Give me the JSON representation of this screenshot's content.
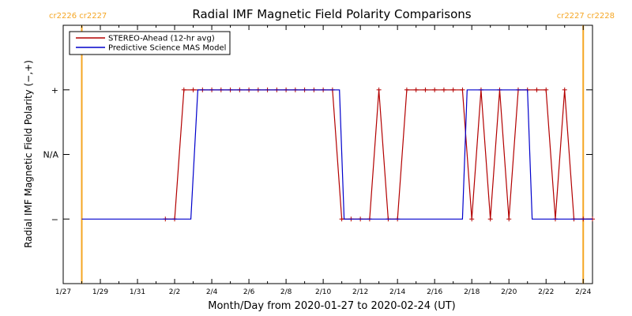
{
  "chart_data": {
    "type": "line",
    "title": "Radial IMF Magnetic Field Polarity Comparisons",
    "xlabel": "Month/Day from 2020-01-27 to 2020-02-24 (UT)",
    "ylabel": "Radial IMF Magnetic Field Polarity (−,+)",
    "x_unit": "days",
    "xlim": [
      "2020-01-27 00:00",
      "2020-02-24 12:00"
    ],
    "ylim": [
      -2,
      2
    ],
    "y_ticks": [
      {
        "value": 1,
        "label": "+"
      },
      {
        "value": 0,
        "label": "N/A"
      },
      {
        "value": -1,
        "label": "−"
      }
    ],
    "x_ticks": [
      {
        "value": "2020-01-27",
        "label": "1/27"
      },
      {
        "value": "2020-01-29",
        "label": "1/29"
      },
      {
        "value": "2020-01-31",
        "label": "1/31"
      },
      {
        "value": "2020-02-02",
        "label": "2/2"
      },
      {
        "value": "2020-02-04",
        "label": "2/4"
      },
      {
        "value": "2020-02-06",
        "label": "2/6"
      },
      {
        "value": "2020-02-08",
        "label": "2/8"
      },
      {
        "value": "2020-02-10",
        "label": "2/10"
      },
      {
        "value": "2020-02-12",
        "label": "2/12"
      },
      {
        "value": "2020-02-14",
        "label": "2/14"
      },
      {
        "value": "2020-02-16",
        "label": "2/16"
      },
      {
        "value": "2020-02-18",
        "label": "2/18"
      },
      {
        "value": "2020-02-20",
        "label": "2/20"
      },
      {
        "value": "2020-02-22",
        "label": "2/22"
      },
      {
        "value": "2020-02-24",
        "label": "2/24"
      }
    ],
    "legend": {
      "placement": "top-left",
      "entries": [
        {
          "label": "STEREO-Ahead (12-hr avg)",
          "color": "#b30000"
        },
        {
          "label": "Predictive Science MAS Model",
          "color": "#0000cc"
        }
      ]
    },
    "carrington_markers": [
      {
        "x": "2020-01-28 00:00",
        "left_label": "cr2226",
        "right_label": "cr2227",
        "side": "left"
      },
      {
        "x": "2020-02-24 00:00",
        "left_label": "cr2227",
        "right_label": "cr2228",
        "side": "right"
      }
    ],
    "series": [
      {
        "name": "STEREO-Ahead (12-hr avg)",
        "color": "#b30000",
        "markers": true,
        "points": [
          [
            "2020-02-01 12:00",
            -1
          ],
          [
            "2020-02-02 00:00",
            -1
          ],
          [
            "2020-02-02 12:00",
            1
          ],
          [
            "2020-02-03 00:00",
            1
          ],
          [
            "2020-02-03 12:00",
            1
          ],
          [
            "2020-02-04 00:00",
            1
          ],
          [
            "2020-02-04 12:00",
            1
          ],
          [
            "2020-02-05 00:00",
            1
          ],
          [
            "2020-02-05 12:00",
            1
          ],
          [
            "2020-02-06 00:00",
            1
          ],
          [
            "2020-02-06 12:00",
            1
          ],
          [
            "2020-02-07 00:00",
            1
          ],
          [
            "2020-02-07 12:00",
            1
          ],
          [
            "2020-02-08 00:00",
            1
          ],
          [
            "2020-02-08 12:00",
            1
          ],
          [
            "2020-02-09 00:00",
            1
          ],
          [
            "2020-02-09 12:00",
            1
          ],
          [
            "2020-02-10 00:00",
            1
          ],
          [
            "2020-02-10 12:00",
            1
          ],
          [
            "2020-02-11 00:00",
            -1
          ],
          [
            "2020-02-11 12:00",
            -1
          ],
          [
            "2020-02-12 00:00",
            -1
          ],
          [
            "2020-02-12 12:00",
            -1
          ],
          [
            "2020-02-13 00:00",
            1
          ],
          [
            "2020-02-13 12:00",
            -1
          ],
          [
            "2020-02-14 00:00",
            -1
          ],
          [
            "2020-02-14 12:00",
            1
          ],
          [
            "2020-02-15 00:00",
            1
          ],
          [
            "2020-02-15 12:00",
            1
          ],
          [
            "2020-02-16 00:00",
            1
          ],
          [
            "2020-02-16 12:00",
            1
          ],
          [
            "2020-02-17 00:00",
            1
          ],
          [
            "2020-02-17 12:00",
            1
          ],
          [
            "2020-02-18 00:00",
            -1
          ],
          [
            "2020-02-18 12:00",
            1
          ],
          [
            "2020-02-19 00:00",
            -1
          ],
          [
            "2020-02-19 12:00",
            1
          ],
          [
            "2020-02-20 00:00",
            -1
          ],
          [
            "2020-02-20 12:00",
            1
          ],
          [
            "2020-02-21 00:00",
            1
          ],
          [
            "2020-02-21 12:00",
            1
          ],
          [
            "2020-02-22 00:00",
            1
          ],
          [
            "2020-02-22 12:00",
            -1
          ],
          [
            "2020-02-23 00:00",
            1
          ],
          [
            "2020-02-23 12:00",
            -1
          ],
          [
            "2020-02-24 00:00",
            -1
          ],
          [
            "2020-02-24 12:00",
            -1
          ]
        ]
      },
      {
        "name": "Predictive Science MAS Model",
        "color": "#0000cc",
        "markers": false,
        "points": [
          [
            "2020-01-28 00:00",
            -1
          ],
          [
            "2020-02-02 21:00",
            -1
          ],
          [
            "2020-02-03 06:00",
            1
          ],
          [
            "2020-02-10 21:00",
            1
          ],
          [
            "2020-02-11 03:00",
            -1
          ],
          [
            "2020-02-17 12:00",
            -1
          ],
          [
            "2020-02-17 18:00",
            1
          ],
          [
            "2020-02-21 00:00",
            1
          ],
          [
            "2020-02-21 06:00",
            -1
          ],
          [
            "2020-02-24 12:00",
            -1
          ]
        ]
      }
    ]
  }
}
